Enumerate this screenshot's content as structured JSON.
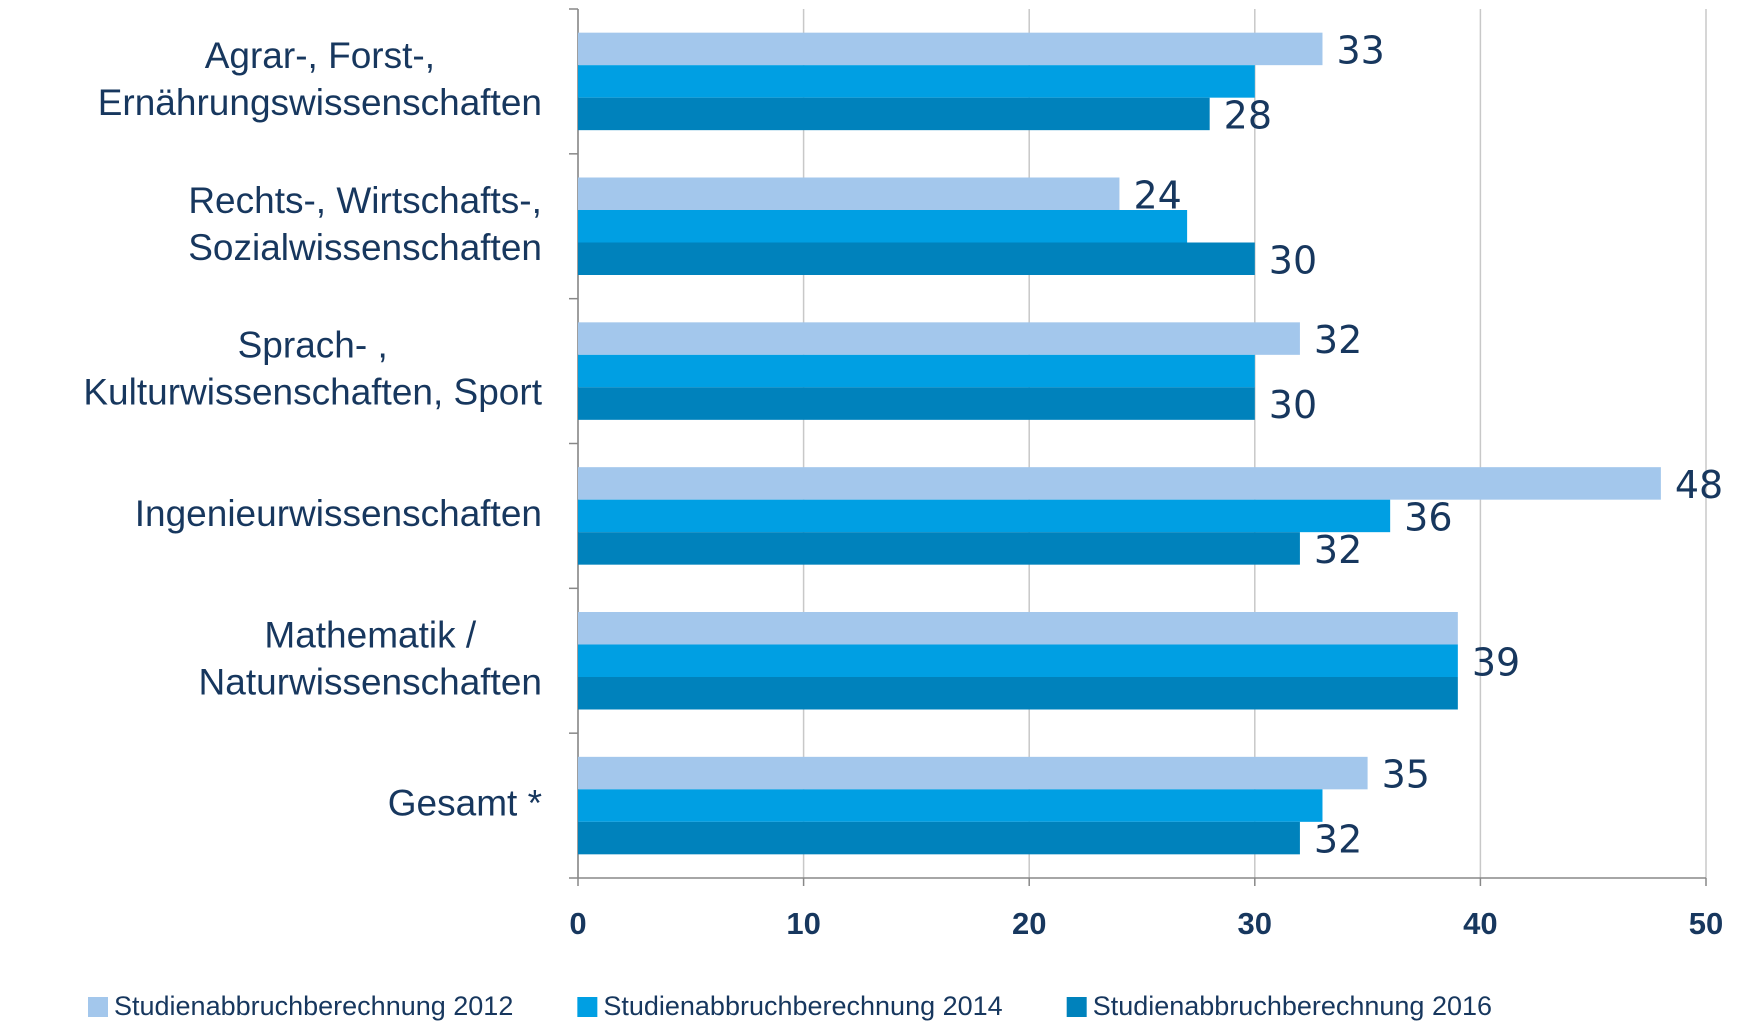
{
  "chart_data": {
    "type": "barh",
    "categories": [
      "Agrar-, Forst-,\nErnährungswissenschaften",
      "Rechts-, Wirtschafts-,\nSozialwissenschaften",
      "Sprach- ,\nKulturwissenschaften, Sport",
      "Ingenieurwissenschaften",
      "Mathematik /\nNaturwissenschaften",
      "Gesamt *"
    ],
    "series": [
      {
        "name": "Studienabbruchberechnung 2012",
        "color": "#a3c7ec",
        "values": [
          33,
          24,
          32,
          48,
          39,
          35
        ],
        "value_labels": [
          "33",
          "24",
          "32",
          "48",
          null,
          "35"
        ]
      },
      {
        "name": "Studienabbruchberechnung 2014",
        "color": "#009fe3",
        "values": [
          30,
          27,
          30,
          36,
          39,
          33
        ],
        "value_labels": [
          null,
          null,
          null,
          "36",
          "39",
          null
        ]
      },
      {
        "name": "Studienabbruchberechnung 2016",
        "color": "#0082bc",
        "values": [
          28,
          30,
          30,
          32,
          39,
          32
        ],
        "value_labels": [
          "28",
          "30",
          "30",
          "32",
          null,
          "32"
        ]
      }
    ],
    "xlim": [
      0,
      50
    ],
    "xticks": [
      0,
      10,
      20,
      30,
      40,
      50
    ],
    "grid": true,
    "legend": "bottom"
  }
}
